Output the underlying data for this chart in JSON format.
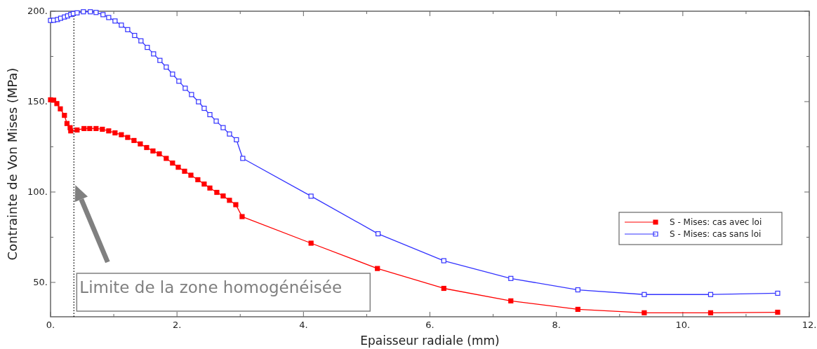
{
  "chart_data": {
    "type": "line",
    "xlabel": "Epaisseur radiale (mm)",
    "ylabel": "Contrainte de Von Mises (MPa)",
    "xlim": [
      0,
      12
    ],
    "ylim": [
      31,
      200
    ],
    "xticks": [
      {
        "value": 0,
        "label": "0."
      },
      {
        "value": 1,
        "label": null
      },
      {
        "value": 2,
        "label": "2."
      },
      {
        "value": 3,
        "label": null
      },
      {
        "value": 4,
        "label": "4."
      },
      {
        "value": 5,
        "label": null
      },
      {
        "value": 6,
        "label": "6."
      },
      {
        "value": 7,
        "label": null
      },
      {
        "value": 8,
        "label": "8."
      },
      {
        "value": 9,
        "label": null
      },
      {
        "value": 10,
        "label": "10."
      },
      {
        "value": 11,
        "label": null
      },
      {
        "value": 12,
        "label": "12."
      }
    ],
    "yticks": [
      {
        "value": 50,
        "label": "50."
      },
      {
        "value": 75,
        "label": null
      },
      {
        "value": 100,
        "label": "100."
      },
      {
        "value": 125,
        "label": null
      },
      {
        "value": 150,
        "label": "150."
      },
      {
        "value": 175,
        "label": null
      },
      {
        "value": 200,
        "label": "200."
      }
    ],
    "grid": false,
    "legend": "right",
    "marker": "square",
    "line_style": "solid",
    "series": [
      {
        "name": "S - Mises: cas avec loi",
        "color": "#ff0000",
        "x": [
          0,
          0.05,
          0.1,
          0.155,
          0.22,
          0.26,
          0.31,
          0.32,
          0.42,
          0.53,
          0.62,
          0.72,
          0.82,
          0.92,
          1.02,
          1.12,
          1.22,
          1.32,
          1.42,
          1.52,
          1.62,
          1.72,
          1.83,
          1.93,
          2.02,
          2.12,
          2.22,
          2.33,
          2.43,
          2.52,
          2.63,
          2.73,
          2.83,
          2.93,
          3.03,
          4.12,
          5.17,
          6.22,
          7.28,
          8.34,
          9.39,
          10.44,
          11.5
        ],
        "values": [
          151,
          150.8,
          148.9,
          146,
          142.4,
          137.9,
          135.6,
          133.8,
          134.3,
          135.1,
          135.1,
          135.1,
          134.7,
          133.8,
          132.7,
          131.7,
          130.2,
          128.5,
          126.6,
          124.6,
          122.7,
          121.1,
          118.6,
          116,
          113.7,
          111.5,
          109.3,
          106.8,
          104.4,
          102.2,
          99.8,
          97.8,
          95.4,
          93,
          86.4,
          71.7,
          57.7,
          46.7,
          39.8,
          35.1,
          33.2,
          33.2,
          33.5
        ]
      },
      {
        "name": "S - Mises: cas sans loi",
        "color": "#3333ff",
        "x": [
          0,
          0.05,
          0.11,
          0.16,
          0.22,
          0.27,
          0.32,
          0.36,
          0.42,
          0.52,
          0.63,
          0.72,
          0.83,
          0.92,
          1.02,
          1.12,
          1.22,
          1.33,
          1.43,
          1.53,
          1.63,
          1.73,
          1.83,
          1.93,
          2.03,
          2.13,
          2.23,
          2.34,
          2.43,
          2.52,
          2.62,
          2.73,
          2.83,
          2.94,
          3.04,
          4.12,
          5.18,
          6.22,
          7.28,
          8.34,
          9.39,
          10.44,
          11.5
        ],
        "values": [
          194.9,
          195,
          195.4,
          196.1,
          196.8,
          197.4,
          198.2,
          198.7,
          199.1,
          199.7,
          199.7,
          199.3,
          198.1,
          196.5,
          194.6,
          192.3,
          189.8,
          186.6,
          183.6,
          180,
          176.4,
          172.8,
          169.1,
          165.2,
          161.3,
          157.4,
          153.9,
          149.9,
          146.3,
          142.8,
          139.2,
          135.6,
          132.1,
          128.9,
          118.6,
          97.7,
          76.9,
          62,
          52.2,
          45.9,
          43.3,
          43.3,
          44
        ]
      }
    ],
    "ref_lines": [
      {
        "axis": "x",
        "value": 0.37,
        "color": "#000000",
        "line_style": "dotted"
      }
    ],
    "annotations": [
      "Limite de la zone homogénéisée"
    ]
  }
}
